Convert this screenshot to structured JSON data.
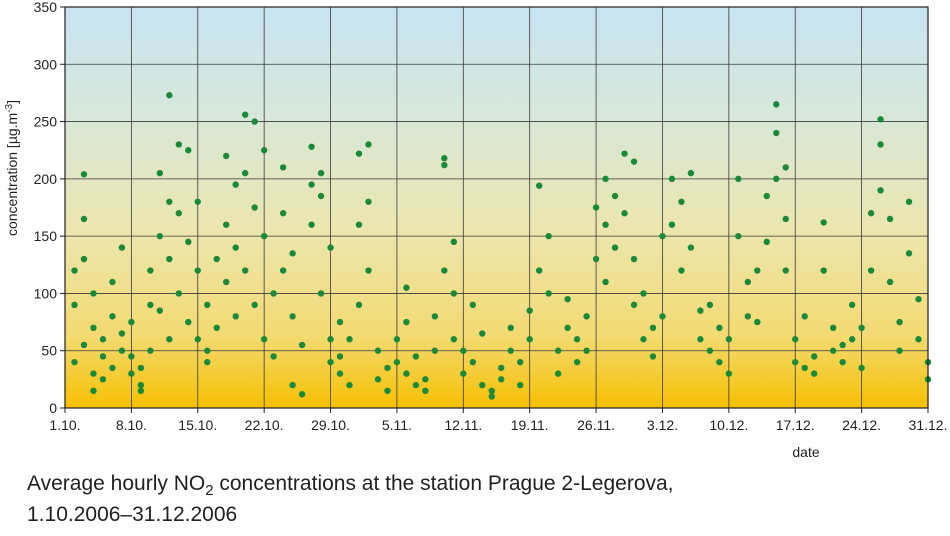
{
  "chart_data": {
    "type": "scatter",
    "title": "",
    "xlabel": "date",
    "ylabel": "concentration [µg.m-3]",
    "ylabel_parts": {
      "main": "concentration [µg.m",
      "sup": "-3",
      "end": "]"
    },
    "x_ticks": [
      "1.10.",
      "8.10.",
      "15.10.",
      "22.10.",
      "29.10.",
      "5.11.",
      "12.11.",
      "19.11.",
      "26.11.",
      "3.12.",
      "10.12.",
      "17.12.",
      "24.12.",
      "31.12."
    ],
    "y_ticks": [
      0,
      50,
      100,
      150,
      200,
      250,
      300,
      350
    ],
    "xlim": [
      "2006-10-01",
      "2006-12-31"
    ],
    "ylim": [
      0,
      350
    ],
    "grid": true,
    "marker_color": "#1a8a3a",
    "background_gradient": [
      "#f6c000",
      "#f2e28a",
      "#d8e6cc",
      "#c9e3f2"
    ],
    "series": [
      {
        "points": [
          [
            "2006-10-02",
            40
          ],
          [
            "2006-10-02",
            120
          ],
          [
            "2006-10-02",
            90
          ],
          [
            "2006-10-03",
            55
          ],
          [
            "2006-10-03",
            204
          ],
          [
            "2006-10-03",
            165
          ],
          [
            "2006-10-03",
            130
          ],
          [
            "2006-10-04",
            70
          ],
          [
            "2006-10-04",
            100
          ],
          [
            "2006-10-04",
            30
          ],
          [
            "2006-10-04",
            15
          ],
          [
            "2006-10-05",
            45
          ],
          [
            "2006-10-05",
            60
          ],
          [
            "2006-10-05",
            25
          ],
          [
            "2006-10-06",
            35
          ],
          [
            "2006-10-06",
            80
          ],
          [
            "2006-10-06",
            110
          ],
          [
            "2006-10-07",
            50
          ],
          [
            "2006-10-07",
            140
          ],
          [
            "2006-10-07",
            65
          ],
          [
            "2006-10-08",
            30
          ],
          [
            "2006-10-08",
            45
          ],
          [
            "2006-10-08",
            75
          ],
          [
            "2006-10-09",
            20
          ],
          [
            "2006-10-09",
            35
          ],
          [
            "2006-10-09",
            15
          ],
          [
            "2006-10-10",
            50
          ],
          [
            "2006-10-10",
            90
          ],
          [
            "2006-10-10",
            120
          ],
          [
            "2006-10-11",
            85
          ],
          [
            "2006-10-11",
            150
          ],
          [
            "2006-10-11",
            205
          ],
          [
            "2006-10-12",
            60
          ],
          [
            "2006-10-12",
            180
          ],
          [
            "2006-10-12",
            273
          ],
          [
            "2006-10-12",
            130
          ],
          [
            "2006-10-13",
            100
          ],
          [
            "2006-10-13",
            230
          ],
          [
            "2006-10-13",
            170
          ],
          [
            "2006-10-14",
            75
          ],
          [
            "2006-10-14",
            145
          ],
          [
            "2006-10-14",
            225
          ],
          [
            "2006-10-15",
            120
          ],
          [
            "2006-10-15",
            60
          ],
          [
            "2006-10-15",
            180
          ],
          [
            "2006-10-16",
            50
          ],
          [
            "2006-10-16",
            90
          ],
          [
            "2006-10-16",
            40
          ],
          [
            "2006-10-17",
            130
          ],
          [
            "2006-10-17",
            70
          ],
          [
            "2006-10-18",
            220
          ],
          [
            "2006-10-18",
            160
          ],
          [
            "2006-10-18",
            110
          ],
          [
            "2006-10-19",
            195
          ],
          [
            "2006-10-19",
            140
          ],
          [
            "2006-10-19",
            80
          ],
          [
            "2006-10-20",
            256
          ],
          [
            "2006-10-20",
            205
          ],
          [
            "2006-10-20",
            120
          ],
          [
            "2006-10-21",
            250
          ],
          [
            "2006-10-21",
            175
          ],
          [
            "2006-10-21",
            90
          ],
          [
            "2006-10-22",
            225
          ],
          [
            "2006-10-22",
            150
          ],
          [
            "2006-10-22",
            60
          ],
          [
            "2006-10-23",
            45
          ],
          [
            "2006-10-23",
            100
          ],
          [
            "2006-10-24",
            170
          ],
          [
            "2006-10-24",
            210
          ],
          [
            "2006-10-24",
            120
          ],
          [
            "2006-10-25",
            80
          ],
          [
            "2006-10-25",
            135
          ],
          [
            "2006-10-25",
            20
          ],
          [
            "2006-10-26",
            12
          ],
          [
            "2006-10-26",
            55
          ],
          [
            "2006-10-27",
            228
          ],
          [
            "2006-10-27",
            195
          ],
          [
            "2006-10-27",
            160
          ],
          [
            "2006-10-28",
            205
          ],
          [
            "2006-10-28",
            185
          ],
          [
            "2006-10-28",
            100
          ],
          [
            "2006-10-29",
            60
          ],
          [
            "2006-10-29",
            140
          ],
          [
            "2006-10-29",
            40
          ],
          [
            "2006-10-30",
            30
          ],
          [
            "2006-10-30",
            45
          ],
          [
            "2006-10-30",
            75
          ],
          [
            "2006-10-31",
            20
          ],
          [
            "2006-10-31",
            60
          ],
          [
            "2006-11-01",
            90
          ],
          [
            "2006-11-01",
            160
          ],
          [
            "2006-11-01",
            222
          ],
          [
            "2006-11-02",
            230
          ],
          [
            "2006-11-02",
            180
          ],
          [
            "2006-11-02",
            120
          ],
          [
            "2006-11-03",
            50
          ],
          [
            "2006-11-03",
            25
          ],
          [
            "2006-11-04",
            35
          ],
          [
            "2006-11-04",
            15
          ],
          [
            "2006-11-05",
            40
          ],
          [
            "2006-11-05",
            60
          ],
          [
            "2006-11-06",
            30
          ],
          [
            "2006-11-06",
            105
          ],
          [
            "2006-11-06",
            75
          ],
          [
            "2006-11-07",
            20
          ],
          [
            "2006-11-07",
            45
          ],
          [
            "2006-11-08",
            25
          ],
          [
            "2006-11-08",
            15
          ],
          [
            "2006-11-09",
            50
          ],
          [
            "2006-11-09",
            80
          ],
          [
            "2006-11-10",
            218
          ],
          [
            "2006-11-10",
            212
          ],
          [
            "2006-11-10",
            120
          ],
          [
            "2006-11-11",
            145
          ],
          [
            "2006-11-11",
            100
          ],
          [
            "2006-11-11",
            60
          ],
          [
            "2006-11-12",
            50
          ],
          [
            "2006-11-12",
            30
          ],
          [
            "2006-11-13",
            40
          ],
          [
            "2006-11-13",
            90
          ],
          [
            "2006-11-14",
            65
          ],
          [
            "2006-11-14",
            20
          ],
          [
            "2006-11-15",
            15
          ],
          [
            "2006-11-15",
            10
          ],
          [
            "2006-11-16",
            25
          ],
          [
            "2006-11-16",
            35
          ],
          [
            "2006-11-17",
            50
          ],
          [
            "2006-11-17",
            70
          ],
          [
            "2006-11-18",
            20
          ],
          [
            "2006-11-18",
            40
          ],
          [
            "2006-11-19",
            60
          ],
          [
            "2006-11-19",
            85
          ],
          [
            "2006-11-20",
            120
          ],
          [
            "2006-11-20",
            194
          ],
          [
            "2006-11-21",
            150
          ],
          [
            "2006-11-21",
            100
          ],
          [
            "2006-11-22",
            50
          ],
          [
            "2006-11-22",
            30
          ],
          [
            "2006-11-23",
            70
          ],
          [
            "2006-11-23",
            95
          ],
          [
            "2006-11-24",
            40
          ],
          [
            "2006-11-24",
            60
          ],
          [
            "2006-11-25",
            80
          ],
          [
            "2006-11-25",
            50
          ],
          [
            "2006-11-26",
            130
          ],
          [
            "2006-11-26",
            175
          ],
          [
            "2006-11-27",
            200
          ],
          [
            "2006-11-27",
            160
          ],
          [
            "2006-11-27",
            110
          ],
          [
            "2006-11-28",
            185
          ],
          [
            "2006-11-28",
            140
          ],
          [
            "2006-11-29",
            222
          ],
          [
            "2006-11-29",
            170
          ],
          [
            "2006-11-30",
            215
          ],
          [
            "2006-11-30",
            130
          ],
          [
            "2006-11-30",
            90
          ],
          [
            "2006-12-01",
            60
          ],
          [
            "2006-12-01",
            100
          ],
          [
            "2006-12-02",
            70
          ],
          [
            "2006-12-02",
            45
          ],
          [
            "2006-12-03",
            80
          ],
          [
            "2006-12-03",
            150
          ],
          [
            "2006-12-04",
            200
          ],
          [
            "2006-12-04",
            160
          ],
          [
            "2006-12-05",
            180
          ],
          [
            "2006-12-05",
            120
          ],
          [
            "2006-12-06",
            205
          ],
          [
            "2006-12-06",
            140
          ],
          [
            "2006-12-07",
            85
          ],
          [
            "2006-12-07",
            60
          ],
          [
            "2006-12-08",
            50
          ],
          [
            "2006-12-08",
            90
          ],
          [
            "2006-12-09",
            40
          ],
          [
            "2006-12-09",
            70
          ],
          [
            "2006-12-10",
            30
          ],
          [
            "2006-12-10",
            60
          ],
          [
            "2006-12-11",
            200
          ],
          [
            "2006-12-11",
            150
          ],
          [
            "2006-12-12",
            110
          ],
          [
            "2006-12-12",
            80
          ],
          [
            "2006-12-13",
            120
          ],
          [
            "2006-12-13",
            75
          ],
          [
            "2006-12-14",
            185
          ],
          [
            "2006-12-14",
            145
          ],
          [
            "2006-12-15",
            265
          ],
          [
            "2006-12-15",
            240
          ],
          [
            "2006-12-15",
            200
          ],
          [
            "2006-12-16",
            210
          ],
          [
            "2006-12-16",
            165
          ],
          [
            "2006-12-16",
            120
          ],
          [
            "2006-12-17",
            40
          ],
          [
            "2006-12-17",
            60
          ],
          [
            "2006-12-18",
            35
          ],
          [
            "2006-12-18",
            80
          ],
          [
            "2006-12-19",
            45
          ],
          [
            "2006-12-19",
            30
          ],
          [
            "2006-12-20",
            162
          ],
          [
            "2006-12-20",
            120
          ],
          [
            "2006-12-21",
            50
          ],
          [
            "2006-12-21",
            70
          ],
          [
            "2006-12-22",
            40
          ],
          [
            "2006-12-22",
            55
          ],
          [
            "2006-12-23",
            90
          ],
          [
            "2006-12-23",
            60
          ],
          [
            "2006-12-24",
            35
          ],
          [
            "2006-12-24",
            70
          ],
          [
            "2006-12-25",
            120
          ],
          [
            "2006-12-25",
            170
          ],
          [
            "2006-12-26",
            252
          ],
          [
            "2006-12-26",
            230
          ],
          [
            "2006-12-26",
            190
          ],
          [
            "2006-12-27",
            165
          ],
          [
            "2006-12-27",
            110
          ],
          [
            "2006-12-28",
            75
          ],
          [
            "2006-12-28",
            50
          ],
          [
            "2006-12-29",
            180
          ],
          [
            "2006-12-29",
            135
          ],
          [
            "2006-12-30",
            95
          ],
          [
            "2006-12-30",
            60
          ],
          [
            "2006-12-31",
            40
          ],
          [
            "2006-12-31",
            25
          ]
        ]
      }
    ]
  },
  "caption": {
    "line1_before": "Average hourly NO",
    "line1_sub": "2",
    "line1_after": " concentrations at the station Prague 2-Legerova,",
    "line2": "1.10.2006–31.12.2006"
  }
}
